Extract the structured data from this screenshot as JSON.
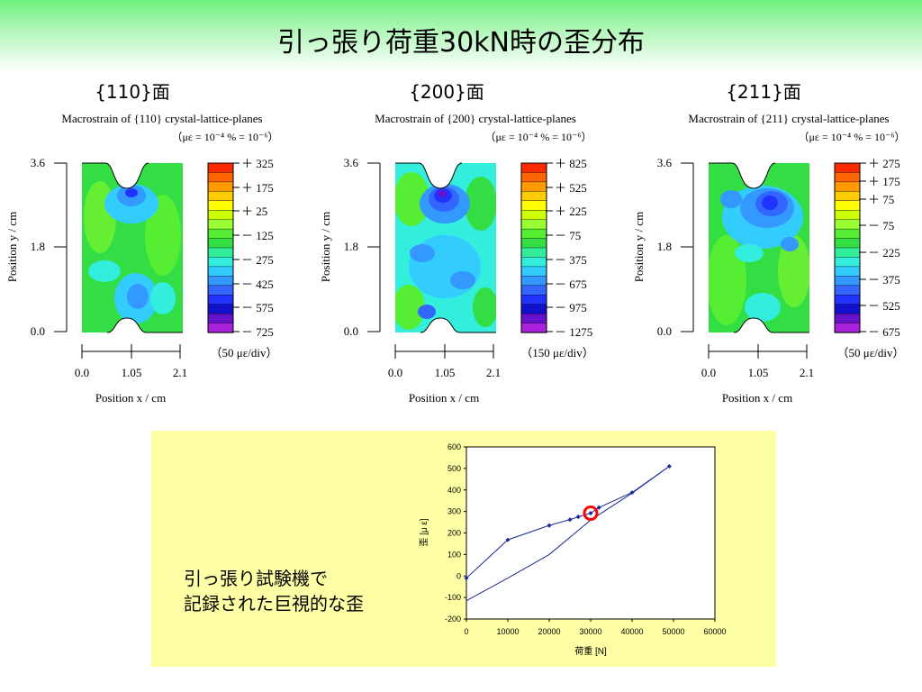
{
  "slide": {
    "title": "引っ張り荷重30kN時の歪分布"
  },
  "panels": [
    {
      "heading": "{110}面",
      "subtitle": "Macrostrain of {110} crystal-lattice-planes",
      "units": "（με = 10⁻⁴ % = 10⁻⁶）",
      "legend_labels": [
        "＋ 325",
        "＋ 175",
        "＋ 25",
        "－ 125",
        "－ 275",
        "－ 425",
        "－ 575",
        "－ 725"
      ],
      "div_label": "（50 με/div）"
    },
    {
      "heading": "{200}面",
      "subtitle": "Macrostrain of {200} crystal-lattice-planes",
      "units": "（με = 10⁻⁴ % = 10⁻⁶）",
      "legend_labels": [
        "＋ 825",
        "＋ 525",
        "＋ 225",
        "－ 75",
        "－ 375",
        "－ 675",
        "－ 975",
        "－ 1275"
      ],
      "div_label": "（150 με/div）"
    },
    {
      "heading": "{211}面",
      "subtitle": "Macrostrain of {211} crystal-lattice-planes",
      "units": "（με = 10⁻⁴ % = 10⁻⁶）",
      "legend_labels": [
        "＋ 275",
        "＋ 175",
        "＋ 75",
        "－ 75",
        "－ 225",
        "－ 375",
        "－ 525",
        "－ 675"
      ],
      "div_label": "（50 με/div）"
    }
  ],
  "axes": {
    "ylabel": "Position y / cm",
    "xlabel": "Position x / cm",
    "y_ticks": [
      "3.6",
      "1.8",
      "0.0"
    ],
    "x_ticks": [
      "0.0",
      "1.05",
      "2.1"
    ]
  },
  "colors": {
    "contour_scale": [
      "#ff2a00",
      "#ff6600",
      "#ff9900",
      "#ffcc00",
      "#ffff00",
      "#ccff00",
      "#99ff33",
      "#55ee33",
      "#33dd44",
      "#33ee99",
      "#33eedd",
      "#33ccff",
      "#3399ff",
      "#3366ff",
      "#2233ff",
      "#1111cc",
      "#6611cc",
      "#aa22dd"
    ],
    "line": "#1a2a99",
    "marker_circle": "#ff0000"
  },
  "caption": {
    "line1": "引っ張り試験機で",
    "line2": "記録された巨視的な歪"
  },
  "chart_data": {
    "type": "line",
    "title": "",
    "xlabel": "荷重 [N]",
    "ylabel": "歪 [μ ε]",
    "xlim": [
      0,
      60000
    ],
    "ylim": [
      -200,
      600
    ],
    "x_ticks": [
      0,
      10000,
      20000,
      30000,
      40000,
      50000,
      60000
    ],
    "y_ticks": [
      -200,
      -100,
      0,
      100,
      200,
      300,
      400,
      500,
      600
    ],
    "series": [
      {
        "x": [
          0,
          10000,
          20000,
          25000,
          27000,
          30000,
          32000,
          40000,
          49000
        ],
        "y": [
          -10,
          168,
          235,
          262,
          275,
          292,
          318,
          388,
          510
        ]
      },
      {
        "x": [
          0,
          10000,
          20000,
          30000,
          40000,
          49000
        ],
        "y": [
          -115,
          -10,
          100,
          260,
          385,
          510
        ]
      }
    ],
    "highlight": {
      "x": 30000,
      "y": 292
    }
  }
}
